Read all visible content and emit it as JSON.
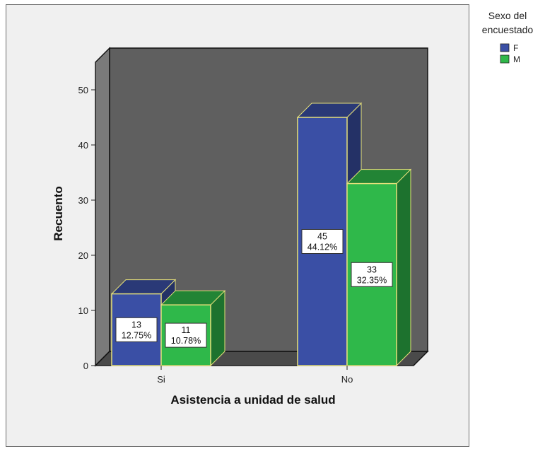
{
  "chart_data": {
    "type": "bar",
    "categories": [
      "Si",
      "No"
    ],
    "series": [
      {
        "name": "F",
        "values": [
          13,
          45
        ],
        "percent_labels": [
          "12.75%",
          "44.12%"
        ],
        "color": "#3a4fa5"
      },
      {
        "name": "M",
        "values": [
          11,
          33
        ],
        "percent_labels": [
          "10.78%",
          "32.35%"
        ],
        "color": "#2fb84a"
      }
    ],
    "xlabel": "Asistencia a unidad de salud",
    "ylabel": "Recuento",
    "ylim": [
      0,
      55
    ],
    "yticks": [
      0,
      10,
      20,
      30,
      40,
      50
    ],
    "legend": {
      "title_lines": [
        "Sexo del",
        "encuestado"
      ],
      "placement": "top-right"
    },
    "style": {
      "wall_color": "#5f5f5f",
      "floor_color": "#4a4a4a",
      "bar_outline": "#e6e07a",
      "three_d": true
    }
  }
}
